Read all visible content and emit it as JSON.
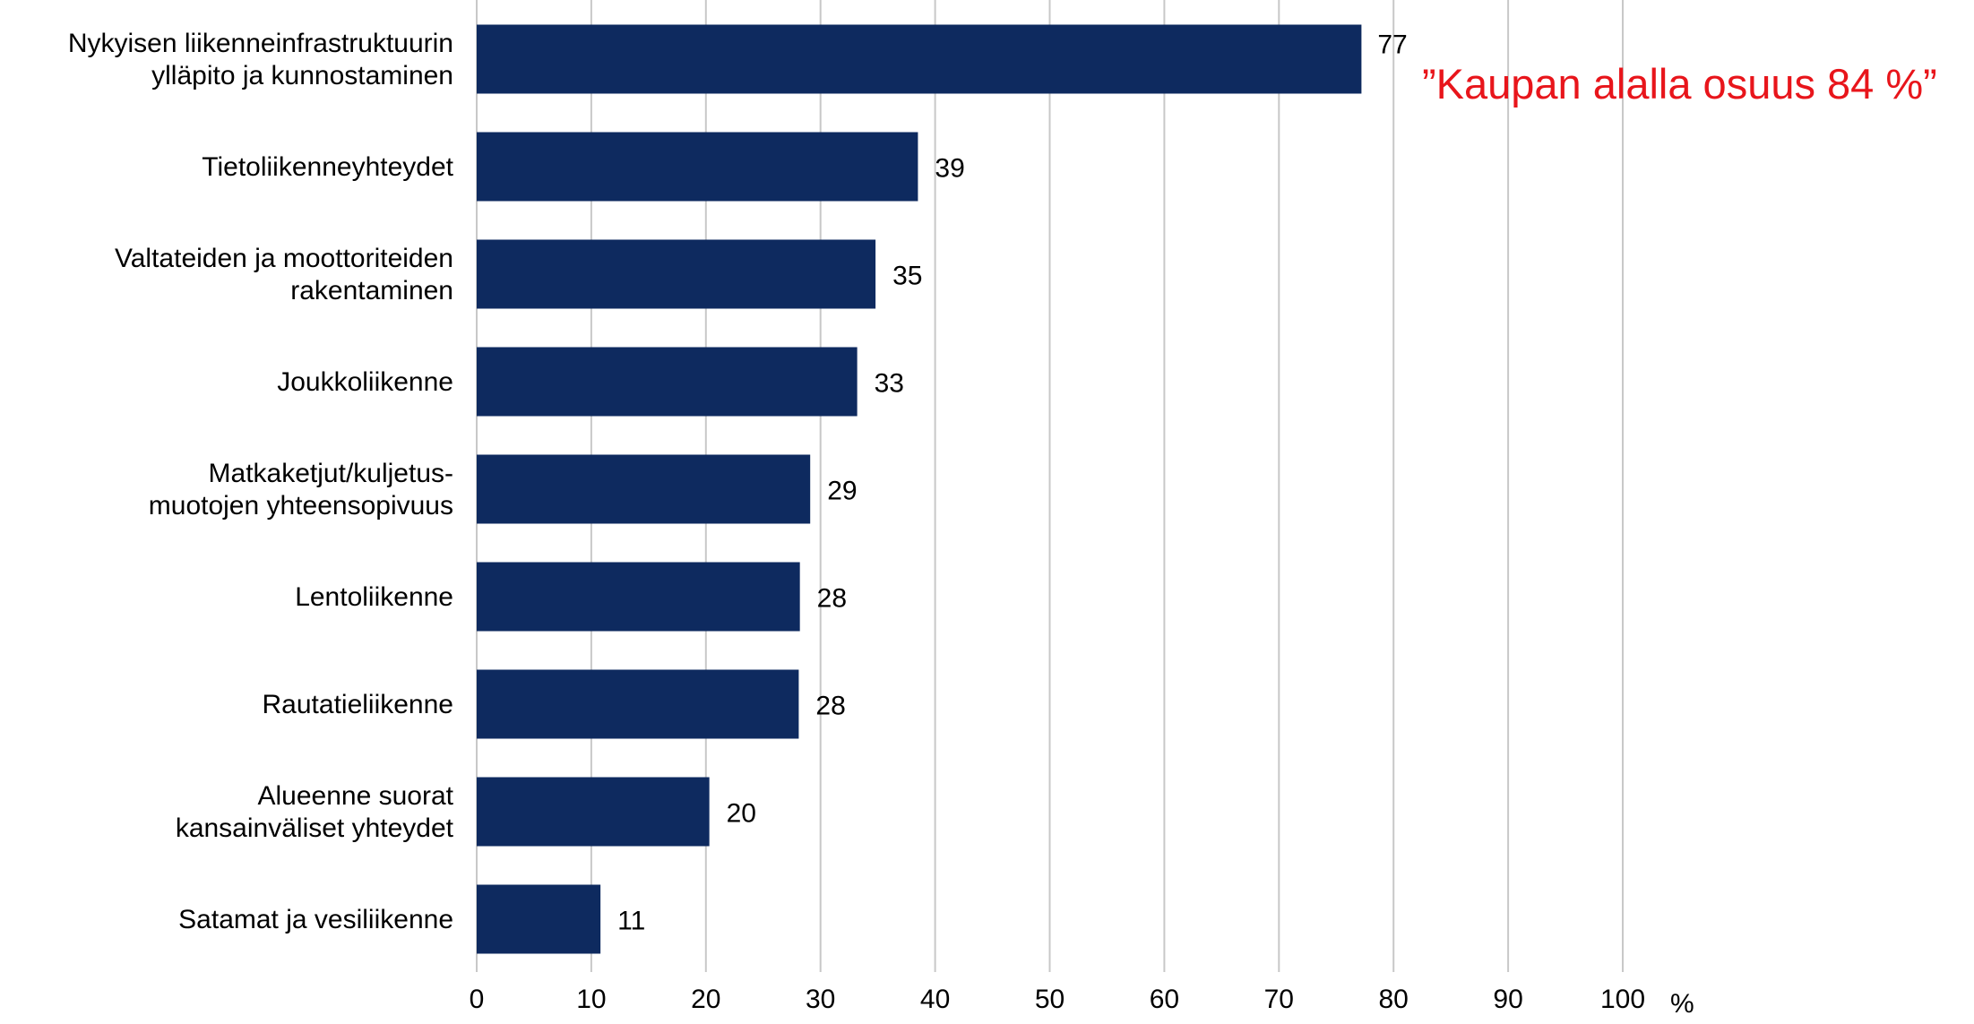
{
  "chart_data": {
    "type": "bar",
    "orientation": "horizontal",
    "categories": [
      [
        "Nykyisen liikenneinfrastruktuurin",
        "ylläpito ja kunnostaminen"
      ],
      [
        "Tietoliikenneyhteydet"
      ],
      [
        "Valtateiden ja moottoriteiden",
        "rakentaminen"
      ],
      [
        "Joukkoliikenne"
      ],
      [
        "Matkaketjut/kuljetus-",
        "muotojen yhteensopivuus"
      ],
      [
        "Lentoliikenne"
      ],
      [
        "Rautatieliikenne"
      ],
      [
        "Alueenne suorat",
        "kansainväliset yhteydet"
      ],
      [
        "Satamat ja vesiliikenne"
      ]
    ],
    "values": [
      77.2,
      38.5,
      34.8,
      33.2,
      29.1,
      28.2,
      28.1,
      20.3,
      10.8
    ],
    "value_labels": [
      "77",
      "39",
      "35",
      "33",
      "29",
      "28",
      "28",
      "20",
      "11"
    ],
    "xlim": [
      0,
      100
    ],
    "xticks": [
      0,
      10,
      20,
      30,
      40,
      50,
      60,
      70,
      80,
      90,
      100
    ],
    "x_unit": "%",
    "grid": true,
    "legend": "none",
    "bar_color": "#0e2a5f",
    "grid_color": "#c8c8c8",
    "annotation": {
      "text": "”Kaupan alalla osuus 84 %”",
      "color": "#e8151b"
    }
  }
}
